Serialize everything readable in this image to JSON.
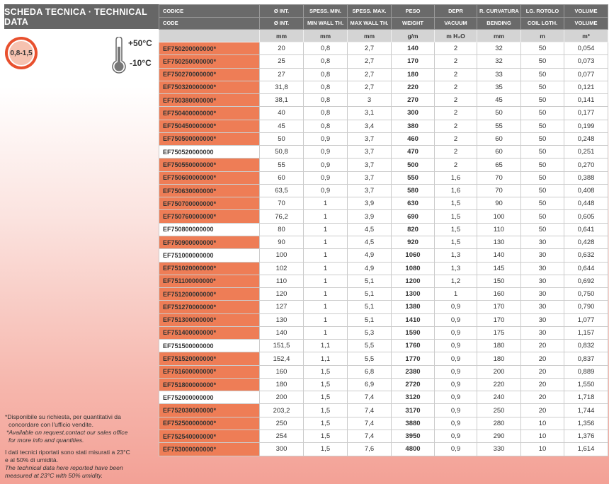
{
  "title": "SCHEDA TECNICA · TECHNICAL DATA",
  "badge": "0,8-1,5",
  "temp_max": "+50°C",
  "temp_min": "-10°C",
  "colors": {
    "header": "#666666",
    "available_on_request": "#ee7d56",
    "unit_row": "#d4d4d4"
  },
  "headers_it": [
    "CODICE",
    "Ø INT.",
    "SPESS. MIN.",
    "SPESS. MAX.",
    "PESO",
    "DEPR",
    "R. CURVATURA",
    "LG. ROTOLO",
    "VOLUME"
  ],
  "headers_en": [
    "CODE",
    "Ø INT.",
    "MIN WALL TH.",
    "MAX WALL TH.",
    "WEIGHT",
    "VACUUM",
    "BENDING",
    "COIL LGTH.",
    "VOLUME"
  ],
  "units": [
    "",
    "mm",
    "mm",
    "mm",
    "g/m",
    "m H₂O",
    "mm",
    "m",
    "m³"
  ],
  "rows": [
    [
      "EF750200000000*",
      "20",
      "0,8",
      "2,7",
      "140",
      "2",
      "32",
      "50",
      "0,054"
    ],
    [
      "EF750250000000*",
      "25",
      "0,8",
      "2,7",
      "170",
      "2",
      "32",
      "50",
      "0,073"
    ],
    [
      "EF750270000000*",
      "27",
      "0,8",
      "2,7",
      "180",
      "2",
      "33",
      "50",
      "0,077"
    ],
    [
      "EF750320000000*",
      "31,8",
      "0,8",
      "2,7",
      "220",
      "2",
      "35",
      "50",
      "0,121"
    ],
    [
      "EF750380000000*",
      "38,1",
      "0,8",
      "3",
      "270",
      "2",
      "45",
      "50",
      "0,141"
    ],
    [
      "EF750400000000*",
      "40",
      "0,8",
      "3,1",
      "300",
      "2",
      "50",
      "50",
      "0,177"
    ],
    [
      "EF750450000000*",
      "45",
      "0,8",
      "3,4",
      "380",
      "2",
      "55",
      "50",
      "0,199"
    ],
    [
      "EF750500000000*",
      "50",
      "0,9",
      "3,7",
      "460",
      "2",
      "60",
      "50",
      "0,248"
    ],
    [
      "EF750520000000",
      "50,8",
      "0,9",
      "3,7",
      "470",
      "2",
      "60",
      "50",
      "0,251"
    ],
    [
      "EF750550000000*",
      "55",
      "0,9",
      "3,7",
      "500",
      "2",
      "65",
      "50",
      "0,270"
    ],
    [
      "EF750600000000*",
      "60",
      "0,9",
      "3,7",
      "550",
      "1,6",
      "70",
      "50",
      "0,388"
    ],
    [
      "EF750630000000*",
      "63,5",
      "0,9",
      "3,7",
      "580",
      "1,6",
      "70",
      "50",
      "0,408"
    ],
    [
      "EF750700000000*",
      "70",
      "1",
      "3,9",
      "630",
      "1,5",
      "90",
      "50",
      "0,448"
    ],
    [
      "EF750760000000*",
      "76,2",
      "1",
      "3,9",
      "690",
      "1,5",
      "100",
      "50",
      "0,605"
    ],
    [
      "EF750800000000",
      "80",
      "1",
      "4,5",
      "820",
      "1,5",
      "110",
      "50",
      "0,641"
    ],
    [
      "EF750900000000*",
      "90",
      "1",
      "4,5",
      "920",
      "1,5",
      "130",
      "30",
      "0,428"
    ],
    [
      "EF751000000000",
      "100",
      "1",
      "4,9",
      "1060",
      "1,3",
      "140",
      "30",
      "0,632"
    ],
    [
      "EF751020000000*",
      "102",
      "1",
      "4,9",
      "1080",
      "1,3",
      "145",
      "30",
      "0,644"
    ],
    [
      "EF751100000000*",
      "110",
      "1",
      "5,1",
      "1200",
      "1,2",
      "150",
      "30",
      "0,692"
    ],
    [
      "EF751200000000*",
      "120",
      "1",
      "5,1",
      "1300",
      "1",
      "160",
      "30",
      "0,750"
    ],
    [
      "EF751270000000*",
      "127",
      "1",
      "5,1",
      "1380",
      "0,9",
      "170",
      "30",
      "0,790"
    ],
    [
      "EF751300000000*",
      "130",
      "1",
      "5,1",
      "1410",
      "0,9",
      "170",
      "30",
      "1,077"
    ],
    [
      "EF751400000000*",
      "140",
      "1",
      "5,3",
      "1590",
      "0,9",
      "175",
      "30",
      "1,157"
    ],
    [
      "EF751500000000",
      "151,5",
      "1,1",
      "5,5",
      "1760",
      "0,9",
      "180",
      "20",
      "0,832"
    ],
    [
      "EF751520000000*",
      "152,4",
      "1,1",
      "5,5",
      "1770",
      "0,9",
      "180",
      "20",
      "0,837"
    ],
    [
      "EF751600000000*",
      "160",
      "1,5",
      "6,8",
      "2380",
      "0,9",
      "200",
      "20",
      "0,889"
    ],
    [
      "EF751800000000*",
      "180",
      "1,5",
      "6,9",
      "2720",
      "0,9",
      "220",
      "20",
      "1,550"
    ],
    [
      "EF752000000000",
      "200",
      "1,5",
      "7,4",
      "3120",
      "0,9",
      "240",
      "20",
      "1,718"
    ],
    [
      "EF752030000000*",
      "203,2",
      "1,5",
      "7,4",
      "3170",
      "0,9",
      "250",
      "20",
      "1,744"
    ],
    [
      "EF752500000000*",
      "250",
      "1,5",
      "7,4",
      "3880",
      "0,9",
      "280",
      "10",
      "1,356"
    ],
    [
      "EF752540000000*",
      "254",
      "1,5",
      "7,4",
      "3950",
      "0,9",
      "290",
      "10",
      "1,376"
    ],
    [
      "EF753000000000*",
      "300",
      "1,5",
      "7,6",
      "4800",
      "0,9",
      "330",
      "10",
      "1,614"
    ]
  ],
  "notes": {
    "avail_it_1": "*Disponibile su richiesta, per quantitativi da",
    "avail_it_2": "concordare con l'ufficio vendite.",
    "avail_en_1": "*Available on request,contact our sales office",
    "avail_en_2": "for more info and quantities.",
    "cond_it_1": "I dati tecnici riportati sono stati misurati a 23°C",
    "cond_it_2": "e al 50% di umidità.",
    "cond_en_1": "The technical data here reported have been",
    "cond_en_2": "measured at 23°C with 50% umidity."
  }
}
